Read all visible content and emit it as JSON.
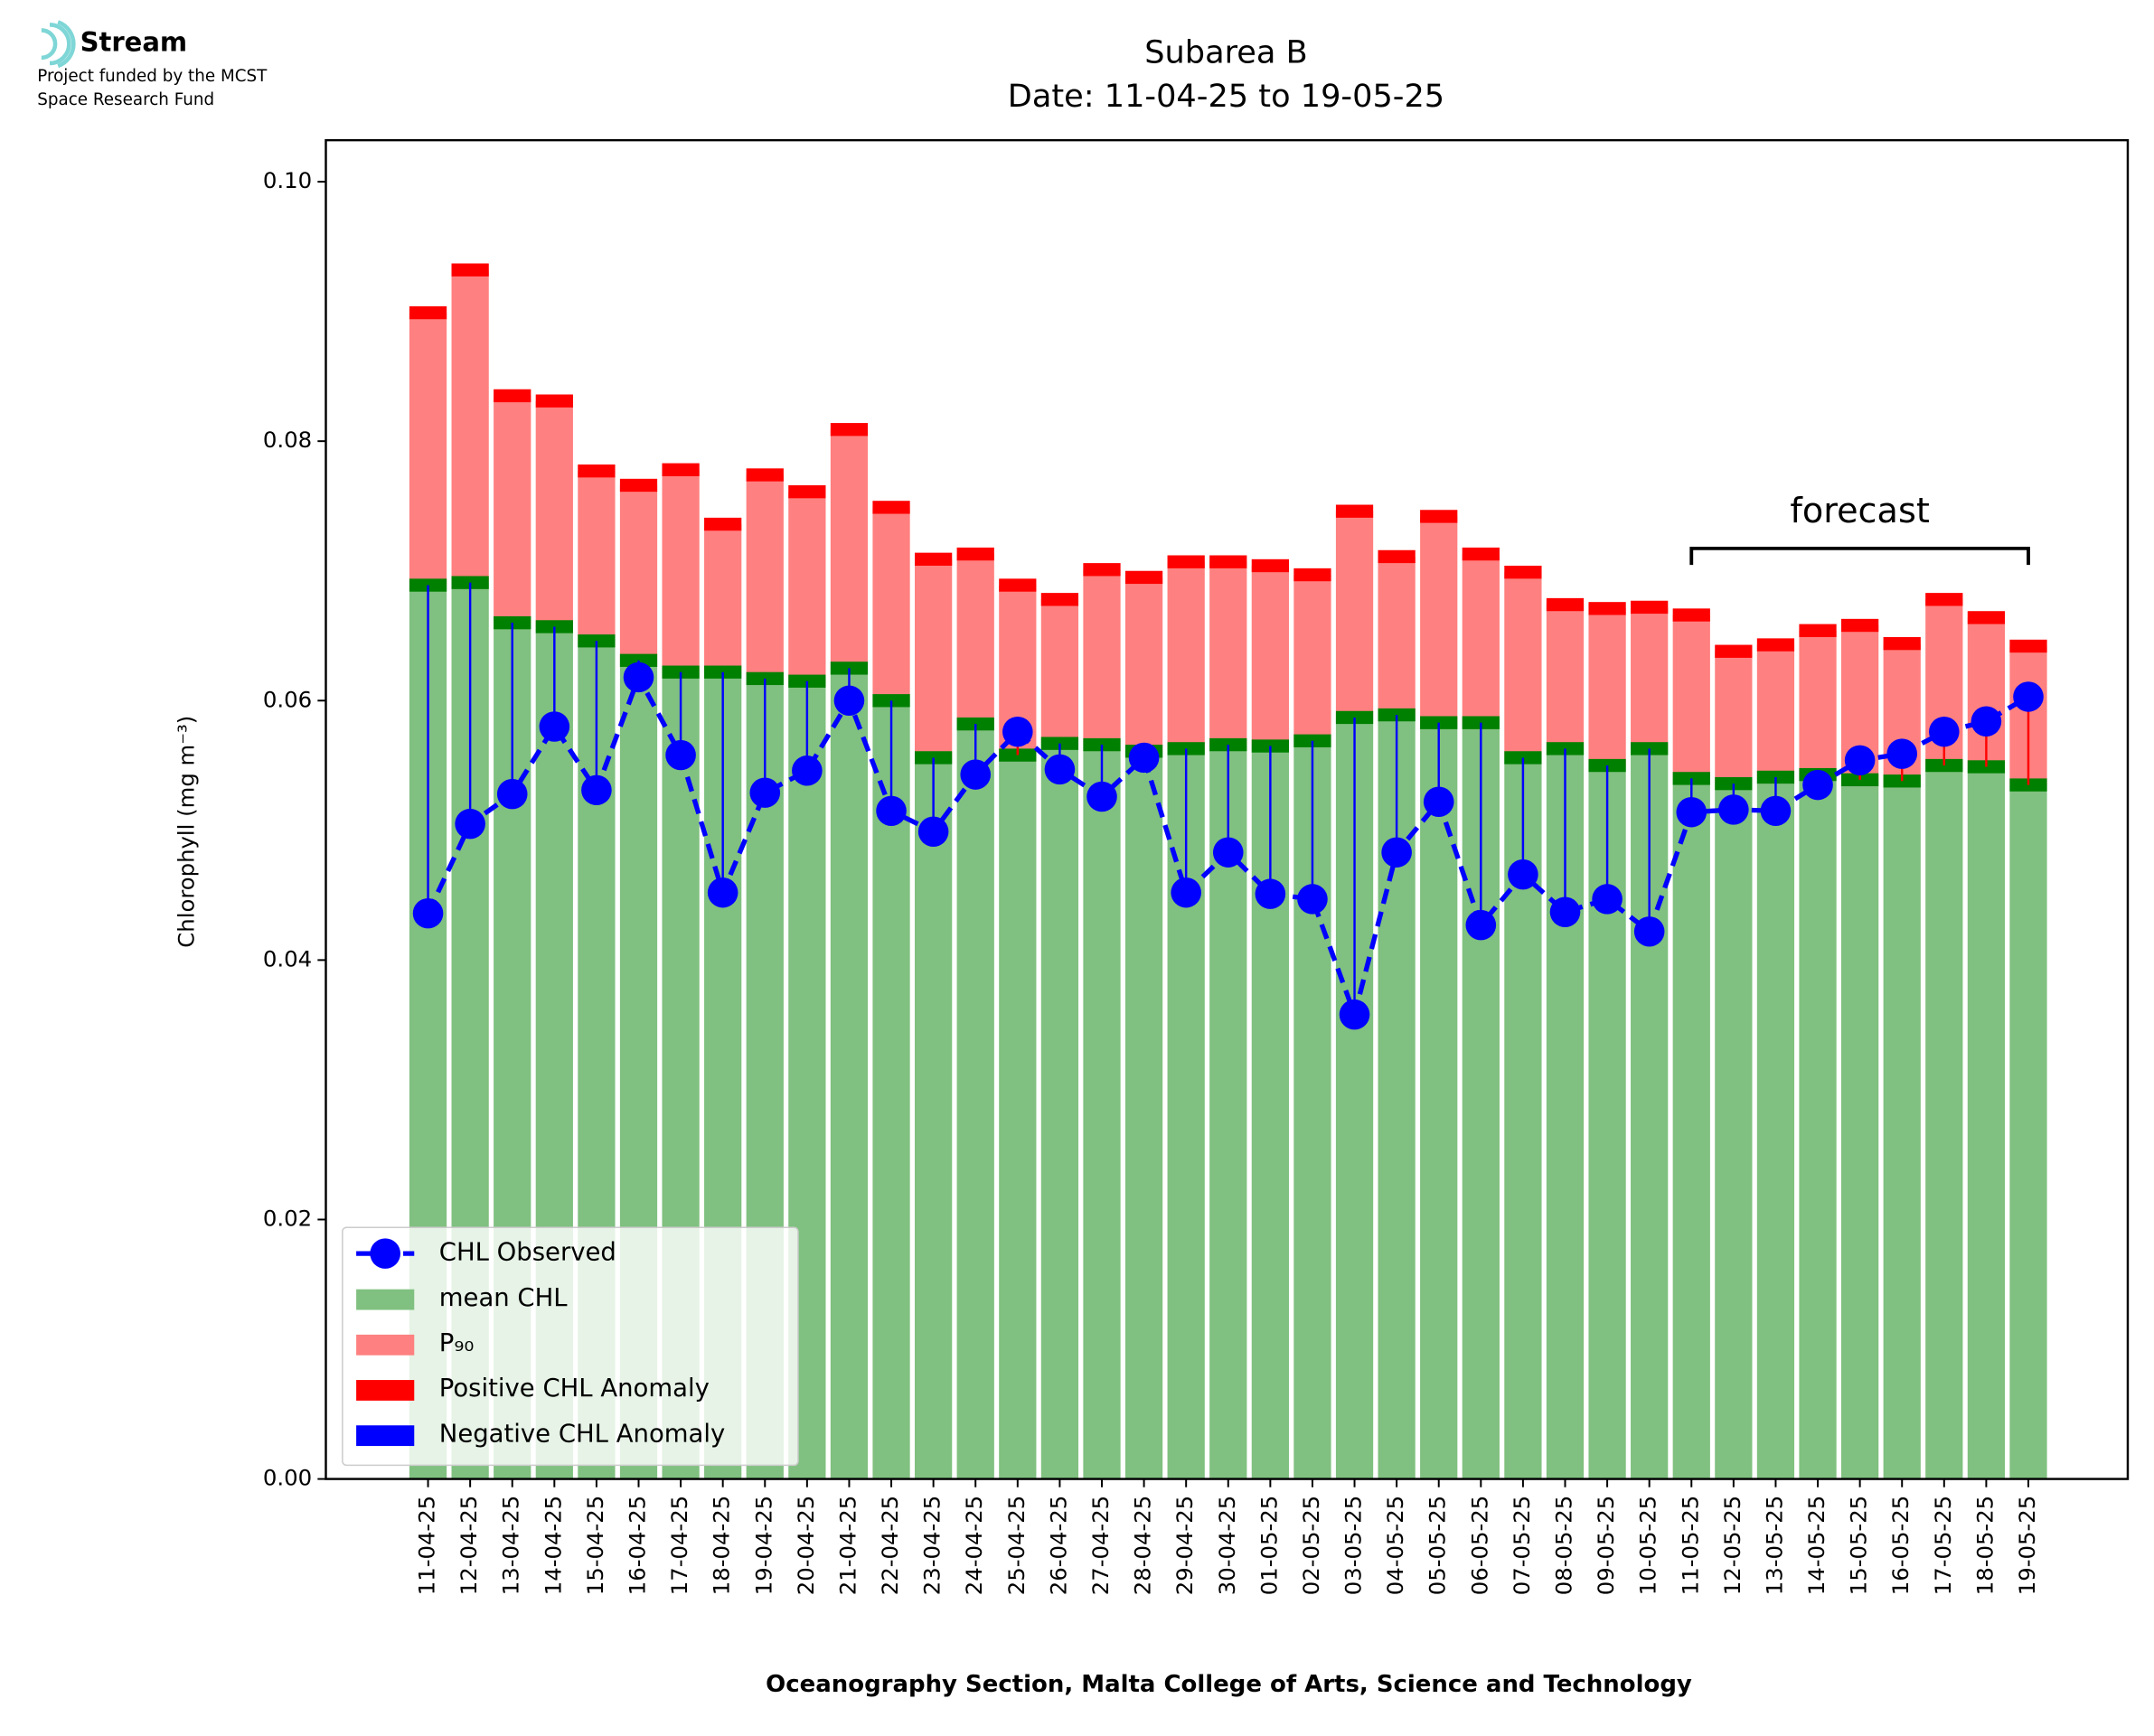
{
  "logo": {
    "name": "Stream",
    "lines": [
      "Project funded by the MCST",
      "Space Research Fund"
    ]
  },
  "chart_data": {
    "type": "bar",
    "title": [
      "Subarea B",
      "Date: 11-04-25 to 19-05-25"
    ],
    "xlabel": "Oceanography Section, Malta College of Arts, Science and Technology",
    "ylabel": "Chlorophyll (mg m⁻³)",
    "annotations": [
      {
        "text": "forecast"
      }
    ],
    "categories": [
      "11-04-25",
      "12-04-25",
      "13-04-25",
      "14-04-25",
      "15-04-25",
      "16-04-25",
      "17-04-25",
      "18-04-25",
      "19-04-25",
      "20-04-25",
      "21-04-25",
      "22-04-25",
      "23-04-25",
      "24-04-25",
      "25-04-25",
      "26-04-25",
      "27-04-25",
      "28-04-25",
      "29-04-25",
      "30-04-25",
      "01-05-25",
      "02-05-25",
      "03-05-25",
      "04-05-25",
      "05-05-25",
      "06-05-25",
      "07-05-25",
      "08-05-25",
      "09-05-25",
      "10-05-25",
      "11-05-25",
      "12-05-25",
      "13-05-25",
      "14-05-25",
      "15-05-25",
      "16-05-25",
      "17-05-25",
      "18-05-25",
      "19-05-25"
    ],
    "series": [
      {
        "name": "CHL Observed",
        "color": "#0000ff",
        "values": [
          0.0436,
          0.0505,
          0.0528,
          0.058,
          0.0531,
          0.0618,
          0.0558,
          0.0452,
          0.0529,
          0.0546,
          0.06,
          0.0515,
          0.0499,
          0.0543,
          0.0576,
          0.0547,
          0.0526,
          0.0556,
          0.0452,
          0.0483,
          0.0451,
          0.0447,
          0.0358,
          0.0483,
          0.0522,
          0.0427,
          0.0466,
          0.0437,
          0.0447,
          0.0422,
          0.0514,
          0.0516,
          0.0515,
          0.0535,
          0.0554,
          0.0559,
          0.0576,
          0.0584,
          0.0603
        ]
      },
      {
        "name": "mean CHL",
        "color": "#80c080",
        "values": [
          0.0689,
          0.0691,
          0.066,
          0.0657,
          0.0646,
          0.0631,
          0.0622,
          0.0622,
          0.0617,
          0.0615,
          0.0625,
          0.06,
          0.0556,
          0.0582,
          0.0558,
          0.0567,
          0.0566,
          0.0561,
          0.0563,
          0.0566,
          0.0565,
          0.0569,
          0.0587,
          0.0589,
          0.0583,
          0.0583,
          0.0556,
          0.0563,
          0.055,
          0.0563,
          0.054,
          0.0536,
          0.0541,
          0.0543,
          0.0539,
          0.0538,
          0.055,
          0.0549,
          0.0535
        ]
      },
      {
        "name": "P₉₀",
        "color": "#ff8080",
        "values": [
          0.0899,
          0.0932,
          0.0835,
          0.0831,
          0.0777,
          0.0766,
          0.0778,
          0.0736,
          0.0774,
          0.0761,
          0.0809,
          0.0749,
          0.0709,
          0.0713,
          0.0689,
          0.0678,
          0.0701,
          0.0695,
          0.0707,
          0.0707,
          0.0704,
          0.0697,
          0.0746,
          0.0711,
          0.0742,
          0.0713,
          0.0699,
          0.0674,
          0.0671,
          0.0672,
          0.0666,
          0.0638,
          0.0643,
          0.0654,
          0.0658,
          0.0644,
          0.0678,
          0.0664,
          0.0642
        ]
      }
    ],
    "anomaly_legend": [
      {
        "name": "Positive CHL Anomaly",
        "color": "#ff0000"
      },
      {
        "name": "Negative CHL Anomaly",
        "color": "#0000ff"
      }
    ],
    "band_colors": {
      "mean": "#008000",
      "p90": "#ff0000"
    },
    "ylim": [
      0,
      0.1032
    ],
    "yticks": [
      {
        "value": 0,
        "label": "0.00"
      },
      0.02,
      0.04,
      0.06,
      0.08,
      {
        "value": 0.1,
        "label": "0.10"
      }
    ],
    "legend": "lower left"
  }
}
